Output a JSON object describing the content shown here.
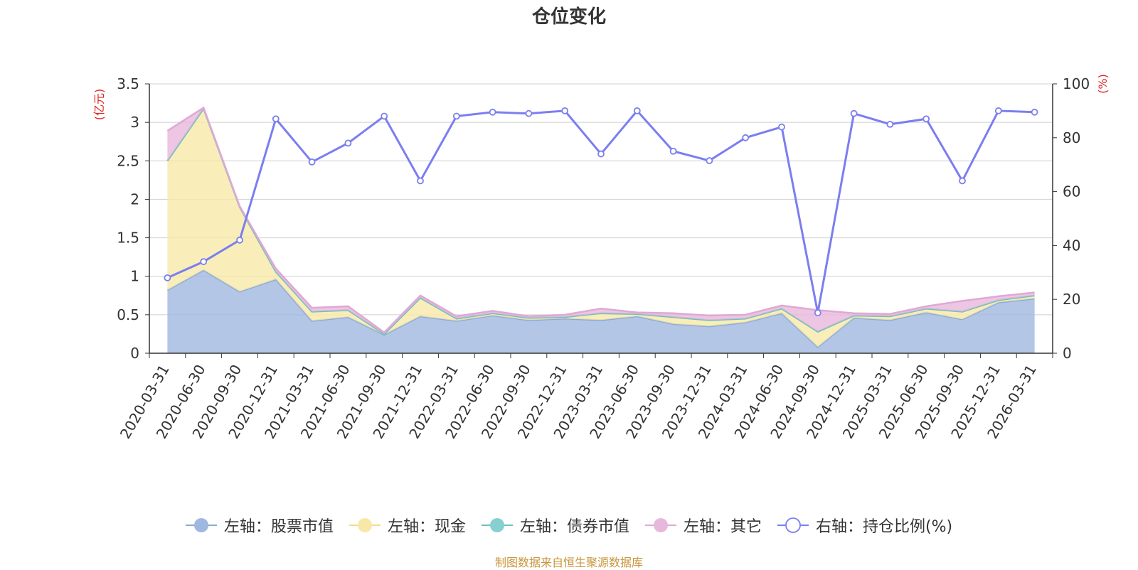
{
  "chart_data": {
    "type": "area",
    "title": "仓位变化",
    "left_axis_unit": "(亿元)",
    "right_axis_unit": "(%)",
    "categories": [
      "2020-03-31",
      "2020-06-30",
      "2020-09-30",
      "2020-12-31",
      "2021-03-31",
      "2021-06-30",
      "2021-09-30",
      "2021-12-31",
      "2022-03-31",
      "2022-06-30",
      "2022-09-30",
      "2022-12-31",
      "2023-03-31",
      "2023-06-30",
      "2023-09-30",
      "2023-12-31",
      "2024-03-31",
      "2024-06-30",
      "2024-09-30",
      "2024-12-31",
      "2025-03-31",
      "2025-06-30",
      "2025-09-30",
      "2025-12-31",
      "2026-03-31"
    ],
    "left_ylim": [
      0,
      3.5
    ],
    "left_ticks": [
      "0",
      "0.5",
      "1",
      "1.5",
      "2",
      "2.5",
      "3",
      "3.5"
    ],
    "right_ylim": [
      0,
      100
    ],
    "right_ticks": [
      "0",
      "20",
      "40",
      "60",
      "80",
      "100"
    ],
    "grid": true,
    "legend_position": "bottom",
    "series": [
      {
        "name": "左轴：股票市值",
        "axis": "left",
        "kind": "stacked-area",
        "color": "#a0b8e0",
        "values": [
          0.82,
          1.08,
          0.8,
          0.96,
          0.42,
          0.47,
          0.24,
          0.48,
          0.42,
          0.49,
          0.43,
          0.45,
          0.43,
          0.48,
          0.38,
          0.35,
          0.4,
          0.52,
          0.08,
          0.46,
          0.43,
          0.53,
          0.44,
          0.66,
          0.71
        ]
      },
      {
        "name": "左轴：现金",
        "axis": "left",
        "kind": "stacked-area",
        "color": "#f8e8a8",
        "values": [
          1.68,
          2.1,
          1.1,
          0.1,
          0.12,
          0.09,
          0.01,
          0.24,
          0.03,
          0.03,
          0.03,
          0.02,
          0.09,
          0.03,
          0.09,
          0.08,
          0.05,
          0.06,
          0.2,
          0.03,
          0.05,
          0.05,
          0.1,
          0.03,
          0.04
        ]
      },
      {
        "name": "左轴：债券市值",
        "axis": "left",
        "kind": "stacked-area",
        "color": "#88d0d0",
        "values": [
          0,
          0,
          0,
          0,
          0,
          0,
          0,
          0,
          0,
          0,
          0,
          0,
          0,
          0,
          0,
          0,
          0,
          0,
          0,
          0,
          0,
          0,
          0,
          0,
          0
        ]
      },
      {
        "name": "左轴：其它",
        "axis": "left",
        "kind": "stacked-area",
        "color": "#e8b8dc",
        "values": [
          0.39,
          0.01,
          0.01,
          0.04,
          0.05,
          0.05,
          0.02,
          0.03,
          0.03,
          0.03,
          0.02,
          0.03,
          0.06,
          0.02,
          0.05,
          0.06,
          0.05,
          0.04,
          0.28,
          0.03,
          0.03,
          0.03,
          0.14,
          0.05,
          0.04
        ]
      },
      {
        "name": "右轴：持仓比例(%)",
        "axis": "right",
        "kind": "line",
        "color": "#7b7ef0",
        "values": [
          28,
          34,
          42,
          87,
          71,
          78,
          88,
          64,
          88,
          89.5,
          89,
          90,
          74,
          90,
          75,
          71.5,
          80,
          84,
          15,
          89,
          85,
          87,
          64,
          90,
          89.5
        ]
      }
    ]
  },
  "footer": {
    "source": "制图数据来自恒生聚源数据库"
  }
}
